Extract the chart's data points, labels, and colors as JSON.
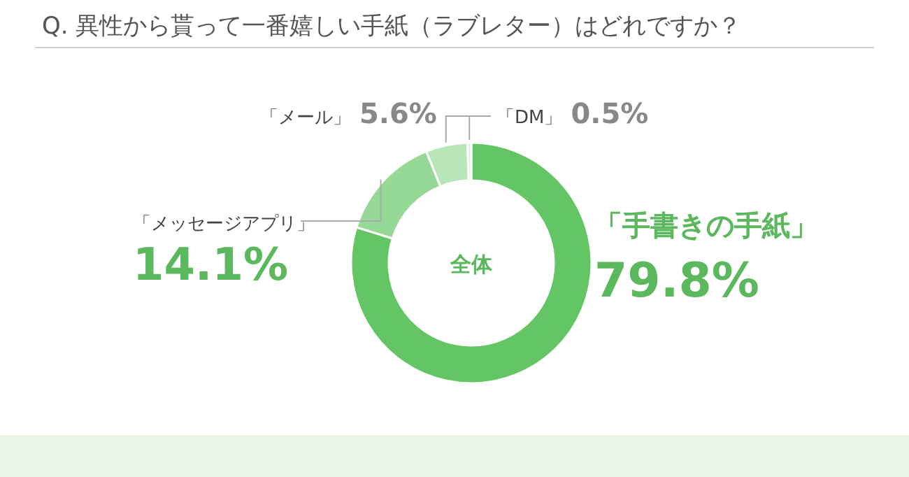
{
  "chart_data": {
    "type": "donut",
    "title": "Q. 異性から貰って一番嬉しい手紙（ラブレター）はどれですか？",
    "categories": [
      "「手書きの手紙」",
      "「メッセージアプリ」",
      "「メール」",
      "「DM」"
    ],
    "values": [
      79.8,
      14.1,
      5.6,
      0.5
    ],
    "value_labels": [
      "79.8%",
      "14.1%",
      "5.6%",
      "0.5%"
    ],
    "colors": [
      "#63c563",
      "#96d996",
      "#b9e6b9",
      "#d6efd6"
    ],
    "annotations": [
      "全体"
    ]
  }
}
